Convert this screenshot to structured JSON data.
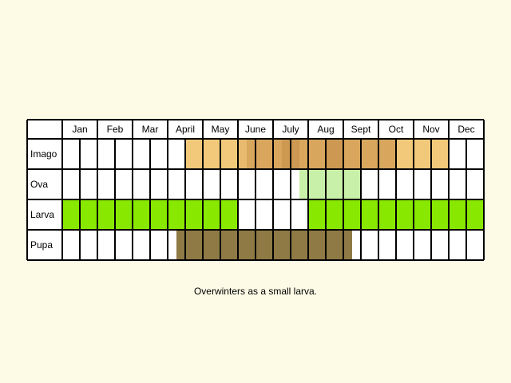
{
  "months": [
    "Jan",
    "Feb",
    "Mar",
    "April",
    "May",
    "June",
    "July",
    "Aug",
    "Sept",
    "Oct",
    "Nov",
    "Dec"
  ],
  "stages": [
    {
      "label": "Imago",
      "color": "#f2c97a",
      "segments": [
        {
          "from": 3.5,
          "to": 5.0,
          "color": "#f2c97a"
        },
        {
          "from": 5.0,
          "to": 5.25,
          "color": "#e7ba6d"
        },
        {
          "from": 5.25,
          "to": 6.25,
          "color": "#d8a65d"
        },
        {
          "from": 6.25,
          "to": 6.75,
          "color": "#cc9852"
        },
        {
          "from": 6.75,
          "to": 7.5,
          "color": "#d8a65d"
        },
        {
          "from": 7.5,
          "to": 8.0,
          "color": "#cc9852"
        },
        {
          "from": 8.0,
          "to": 9.5,
          "color": "#d8a65d"
        },
        {
          "from": 9.5,
          "to": 11.0,
          "color": "#f2c97a"
        }
      ]
    },
    {
      "label": "Ova",
      "color": "#c8f0a8",
      "segments": [
        {
          "from": 6.75,
          "to": 8.5,
          "color": "#c8f0a8"
        }
      ]
    },
    {
      "label": "Larva",
      "color": "#88e800",
      "segments": [
        {
          "from": 0.0,
          "to": 5.0,
          "color": "#88e800"
        },
        {
          "from": 7.0,
          "to": 12.0,
          "color": "#88e800"
        }
      ]
    },
    {
      "label": "Pupa",
      "color": "#8f7a45",
      "segments": [
        {
          "from": 3.25,
          "to": 8.25,
          "color": "#8f7a45"
        }
      ]
    }
  ],
  "caption": "Overwinters as a small larva."
}
